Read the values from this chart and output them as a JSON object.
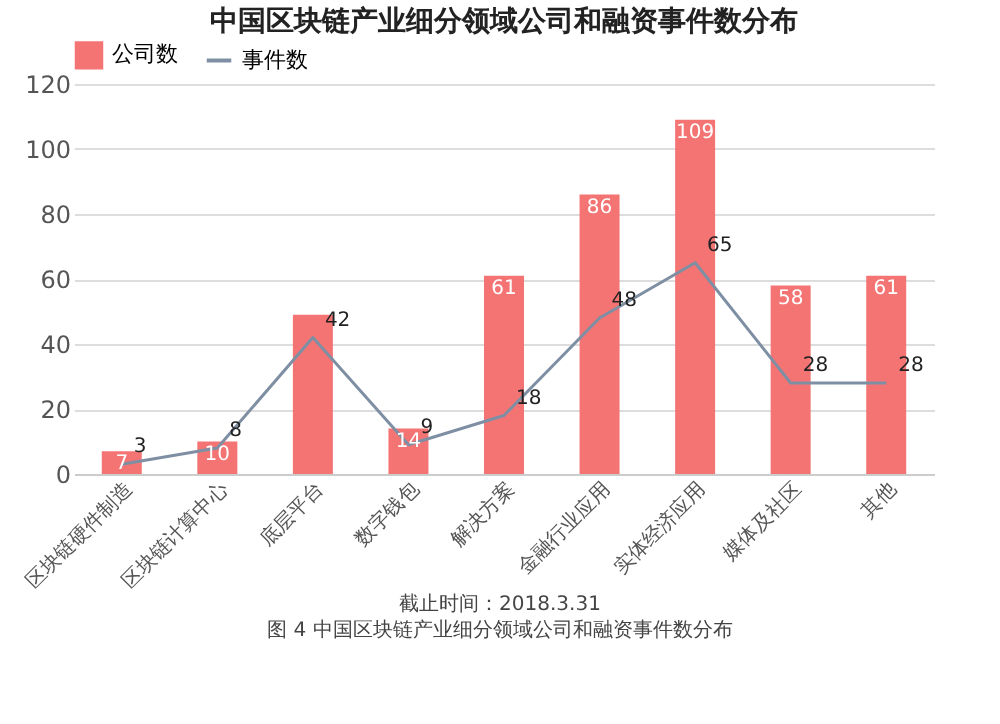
{
  "chart_data": {
    "type": "bar",
    "title": "中国区块链产业细分领域公司和融资事件数分布",
    "categories": [
      "区块链硬件制造",
      "区块链计算中心",
      "底层平台",
      "数字钱包",
      "解决方案",
      "金融行业应用",
      "实体经济应用",
      "媒体及社区",
      "其他"
    ],
    "series": [
      {
        "name": "公司数",
        "color": "#f47474",
        "values": [
          7,
          10,
          49,
          14,
          61,
          86,
          109,
          58,
          61
        ],
        "value_labels": [
          "7",
          "10",
          null,
          "14",
          "61",
          "86",
          "109",
          "58",
          "61"
        ]
      },
      {
        "name": "事件数",
        "type": "line",
        "color": "#7f8fa3",
        "values": [
          3,
          8,
          42,
          9,
          18,
          48,
          65,
          28,
          28
        ],
        "value_labels": [
          "3",
          "8",
          "42",
          "9",
          "18",
          "48",
          "65",
          "28",
          "28"
        ]
      }
    ],
    "ylim": [
      0,
      120
    ],
    "yticks": [
      0,
      20,
      40,
      60,
      80,
      100,
      120
    ],
    "grid": "y",
    "legend": "top",
    "marker": "none",
    "annotations": [
      "截止时间：2018.3.31",
      "图 4 中国区块链产业细分领域公司和融资事件数分布"
    ]
  }
}
